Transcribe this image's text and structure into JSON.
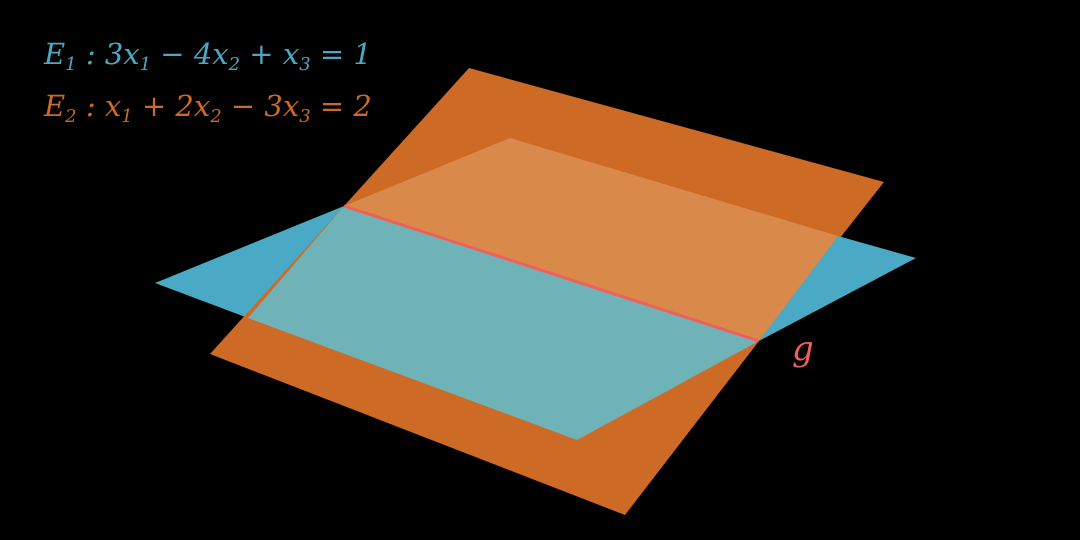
{
  "colors": {
    "background": "#000000",
    "plane_e1": "#4aa9c4",
    "plane_e2": "#cc6a26",
    "plane_e2_overlay": "#d98a4a",
    "plane_e1_overlay": "#6fb3b8",
    "line_g": "#f0605a"
  },
  "equations": {
    "e1": {
      "name": "E",
      "index": "1",
      "lhs": ": 3x",
      "rest": "1 − 4x",
      "rest2": "2 + x",
      "tail": "3 = 1"
    },
    "e2": {
      "name": "E",
      "index": "2",
      "lhs": ": x",
      "rest": "1 + 2x",
      "rest2": "2 − 3x",
      "tail": "3 = 2"
    }
  },
  "line_label": "g"
}
